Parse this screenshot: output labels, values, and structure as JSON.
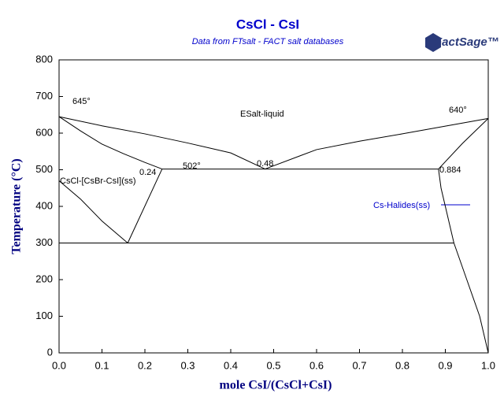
{
  "chart_data": {
    "type": "line",
    "title": "CsCl - CsI",
    "subtitle": "Data from FTsalt - FACT salt databases",
    "logo": "FactSage™",
    "x_label": "mole CsI/(CsCl+CsI)",
    "y_label": "Temperature (°C)",
    "xlim": [
      0,
      1
    ],
    "ylim": [
      0,
      800
    ],
    "xticks": [
      {
        "value": 0,
        "label": "0.0"
      },
      0.1,
      0.2,
      0.3,
      0.4,
      0.5,
      0.6,
      0.7,
      0.8,
      0.9,
      {
        "value": 1,
        "label": "1.0"
      }
    ],
    "yticks": [
      0,
      100,
      200,
      300,
      400,
      500,
      600,
      700,
      800
    ],
    "series": [
      {
        "color": "#000000",
        "x": [
          0,
          0.1,
          0.2,
          0.3,
          0.4,
          0.48
        ],
        "values": [
          645,
          620,
          598,
          573,
          546,
          502
        ]
      },
      {
        "color": "#000000",
        "x": [
          0,
          0.05,
          0.1,
          0.15,
          0.2,
          0.24
        ],
        "values": [
          645,
          606,
          570,
          544,
          520,
          502
        ]
      },
      {
        "color": "#000000",
        "x": [
          0.48,
          0.6,
          0.7,
          0.8,
          0.9,
          1
        ],
        "values": [
          502,
          555,
          578,
          598,
          619,
          640
        ]
      },
      {
        "color": "#000000",
        "x": [
          0.884,
          0.94,
          1
        ],
        "values": [
          502,
          572,
          640
        ]
      },
      {
        "color": "#000000",
        "x": [
          0.24,
          0.884
        ],
        "values": [
          502,
          502
        ]
      },
      {
        "color": "#000000",
        "x": [
          0,
          0.05,
          0.1,
          0.16
        ],
        "values": [
          470,
          420,
          360,
          300
        ]
      },
      {
        "color": "#000000",
        "x": [
          0.16,
          0.24
        ],
        "values": [
          300,
          502
        ]
      },
      {
        "color": "#000000",
        "x": [
          0,
          0.92
        ],
        "values": [
          300,
          300
        ]
      },
      {
        "color": "#000000",
        "x": [
          0.884,
          0.89,
          0.9,
          0.92,
          0.95,
          0.98,
          1
        ],
        "values": [
          502,
          450,
          400,
          300,
          200,
          100,
          0
        ]
      }
    ],
    "annotations": [
      "645°",
      "640°",
      "502°",
      "0.48",
      "0.24",
      "0.884",
      "ESalt-liquid",
      "CsCl-[CsBr-CsI](ss)",
      "Cs-Halides(ss)"
    ]
  }
}
